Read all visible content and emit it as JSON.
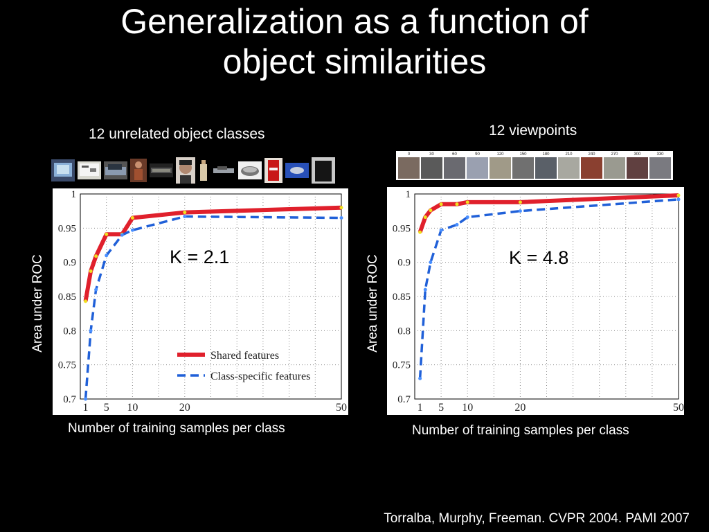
{
  "slide": {
    "title_line1": "Generalization as a function of",
    "title_line2": "object similarities",
    "citation": "Torralba, Murphy, Freeman. CVPR 2004. PAMI 2007"
  },
  "left": {
    "caption": "12 unrelated object classes",
    "k_label": "K = 2.1",
    "ylabel": "Area under ROC",
    "xlabel": "Number of training samples per class"
  },
  "right": {
    "caption": "12 viewpoints",
    "k_label": "K = 4.8",
    "ylabel": "Area under ROC",
    "xlabel": "Number of training samples per class",
    "viewpoint_labels": [
      "0",
      "30",
      "60",
      "90",
      "120",
      "150",
      "180",
      "210",
      "240",
      "270",
      "300",
      "330"
    ]
  },
  "object_thumbnails": [
    "monitor-photo",
    "whiteboard-photo",
    "car-photo",
    "person-photo",
    "keyboard-photo",
    "face-photo",
    "bottle-photo",
    "car-side-photo",
    "mouse-photo",
    "can-photo",
    "blue-object-photo",
    "trashcan-photo"
  ],
  "colors": {
    "shared": "#e0202c",
    "class_specific": "#2060d8",
    "marker": "#f0e020"
  },
  "chart_data": [
    {
      "type": "line",
      "xticks": [
        1,
        5,
        10,
        20,
        50
      ],
      "yticks": [
        0.7,
        0.75,
        0.8,
        0.85,
        0.9,
        0.95,
        1
      ],
      "ytick_labels": [
        "0.7",
        "0.75",
        "0.8",
        "0.85",
        "0.9",
        "0.95",
        "1"
      ],
      "xlim": [
        0,
        50
      ],
      "ylim": [
        0.7,
        1.0
      ],
      "grid": true,
      "legend_position": "lower-right",
      "series": [
        {
          "name": "Shared features",
          "style": "solid",
          "x": [
            1,
            2,
            3,
            5,
            8,
            10,
            20,
            50
          ],
          "y": [
            0.843,
            0.887,
            0.909,
            0.941,
            0.941,
            0.965,
            0.973,
            0.98
          ]
        },
        {
          "name": "Class-specific features",
          "style": "dashed",
          "x": [
            1,
            2,
            3,
            5,
            8,
            10,
            20,
            50
          ],
          "y": [
            0.7,
            0.8,
            0.86,
            0.91,
            0.94,
            0.947,
            0.967,
            0.965
          ]
        }
      ]
    },
    {
      "type": "line",
      "xticks": [
        1,
        5,
        10,
        20,
        50
      ],
      "yticks": [
        0.7,
        0.75,
        0.8,
        0.85,
        0.9,
        0.95,
        1
      ],
      "ytick_labels": [
        "0.7",
        "0.75",
        "0.8",
        "0.85",
        "0.9",
        "0.95",
        "1"
      ],
      "xlim": [
        0,
        50
      ],
      "ylim": [
        0.7,
        1.0
      ],
      "grid": true,
      "series": [
        {
          "name": "",
          "style": "solid",
          "x": [
            1,
            2,
            3,
            5,
            8,
            10,
            20,
            50
          ],
          "y": [
            0.944,
            0.966,
            0.976,
            0.985,
            0.985,
            0.988,
            0.988,
            0.998
          ]
        },
        {
          "name": "",
          "style": "dashed",
          "x": [
            1,
            2,
            3,
            5,
            8,
            10,
            20,
            50
          ],
          "y": [
            0.73,
            0.86,
            0.9,
            0.947,
            0.955,
            0.966,
            0.975,
            0.992
          ]
        }
      ]
    }
  ]
}
